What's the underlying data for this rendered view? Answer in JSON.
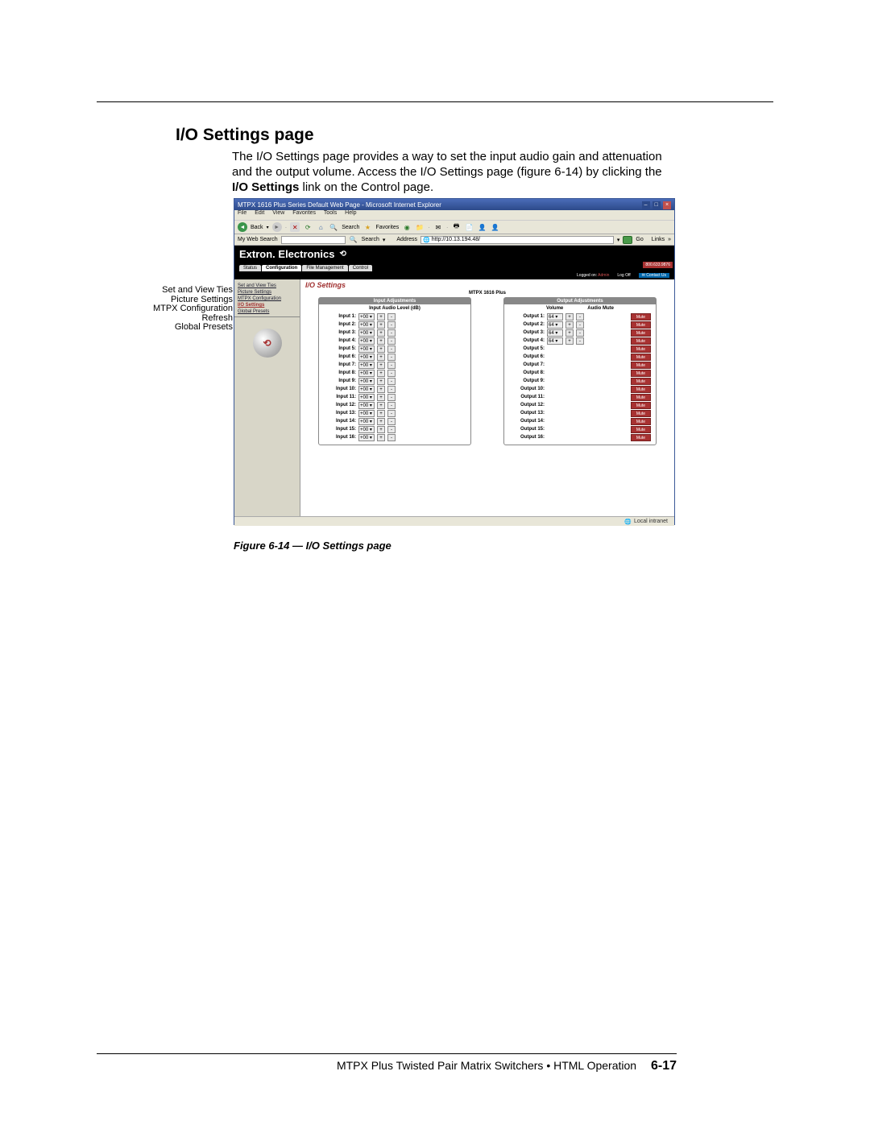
{
  "heading": "I/O Settings page",
  "body_para": "The I/O Settings page provides a way to set the input audio gain and attenuation and the output volume.  Access the I/O Settings page (figure 6-14) by clicking the ",
  "body_bold": "I/O Settings",
  "body_tail": " link on the Control page.",
  "browser": {
    "title": "MTPX 1616 Plus Series Default Web Page - Microsoft Internet Explorer",
    "menu": [
      "File",
      "Edit",
      "View",
      "Favorites",
      "Tools",
      "Help"
    ],
    "back": "Back",
    "search_label": "Search",
    "fav_label": "Favorites",
    "myweb": "My Web Search",
    "isearch": "Search",
    "address_label": "Address",
    "address_value": "http://10.13.194.48/",
    "go": "Go",
    "links": "Links",
    "status_text": "Local intranet"
  },
  "extron": {
    "brand": "Extron. Electronics",
    "tabs": [
      "Status",
      "Configuration",
      "File Management",
      "Control"
    ],
    "active_tab": 1,
    "phone": "800.633.9876",
    "logged_as_label": "Logged on:",
    "logged_user": "Admin",
    "logoff": "Log Off",
    "contact": "Contact Us"
  },
  "sidebar_items": [
    "Set and View Ties",
    "Picture Settings",
    "MTPX Configuration",
    "I/O Settings",
    "Global Presets"
  ],
  "io": {
    "title": "I/O Settings",
    "device": "MTPX 1616 Plus",
    "input_header": "Input Adjustments",
    "output_header": "Output Adjustments",
    "input_sub": "Input Audio Level (dB)",
    "out_vol": "Volume",
    "out_mute": "Audio Mute",
    "mute_label": "Mute",
    "inputs": [
      {
        "label": "Input 1:",
        "val": "+00"
      },
      {
        "label": "Input 2:",
        "val": "+00"
      },
      {
        "label": "Input 3:",
        "val": "+00"
      },
      {
        "label": "Input 4:",
        "val": "+00"
      },
      {
        "label": "Input 5:",
        "val": "+00"
      },
      {
        "label": "Input 6:",
        "val": "+00"
      },
      {
        "label": "Input 7:",
        "val": "+00"
      },
      {
        "label": "Input 8:",
        "val": "+00"
      },
      {
        "label": "Input 9:",
        "val": "+00"
      },
      {
        "label": "Input 10:",
        "val": "+00"
      },
      {
        "label": "Input 11:",
        "val": "+00"
      },
      {
        "label": "Input 12:",
        "val": "+00"
      },
      {
        "label": "Input 13:",
        "val": "+00"
      },
      {
        "label": "Input 14:",
        "val": "+00"
      },
      {
        "label": "Input 15:",
        "val": "+00"
      },
      {
        "label": "Input 16:",
        "val": "+00"
      }
    ],
    "outputs": [
      {
        "label": "Output 1:",
        "val": "64",
        "vol": true
      },
      {
        "label": "Output 2:",
        "val": "64",
        "vol": true
      },
      {
        "label": "Output 3:",
        "val": "64",
        "vol": true
      },
      {
        "label": "Output 4:",
        "val": "64",
        "vol": true
      },
      {
        "label": "Output 5:",
        "vol": false
      },
      {
        "label": "Output 6:",
        "vol": false
      },
      {
        "label": "Output 7:",
        "vol": false
      },
      {
        "label": "Output 8:",
        "vol": false
      },
      {
        "label": "Output 9:",
        "vol": false
      },
      {
        "label": "Output 10:",
        "vol": false
      },
      {
        "label": "Output 11:",
        "vol": false
      },
      {
        "label": "Output 12:",
        "vol": false
      },
      {
        "label": "Output 13:",
        "vol": false
      },
      {
        "label": "Output 14:",
        "vol": false
      },
      {
        "label": "Output 15:",
        "vol": false
      },
      {
        "label": "Output 16:",
        "vol": false
      }
    ]
  },
  "callouts": [
    "Set and View Ties",
    "Picture Settings",
    "MTPX Configuration",
    "Refresh",
    "Global Presets"
  ],
  "figure_caption": "Figure 6-14 — I/O Settings page",
  "footer_text": "MTPX Plus Twisted Pair Matrix Switchers • HTML Operation",
  "page_num": "6-17"
}
